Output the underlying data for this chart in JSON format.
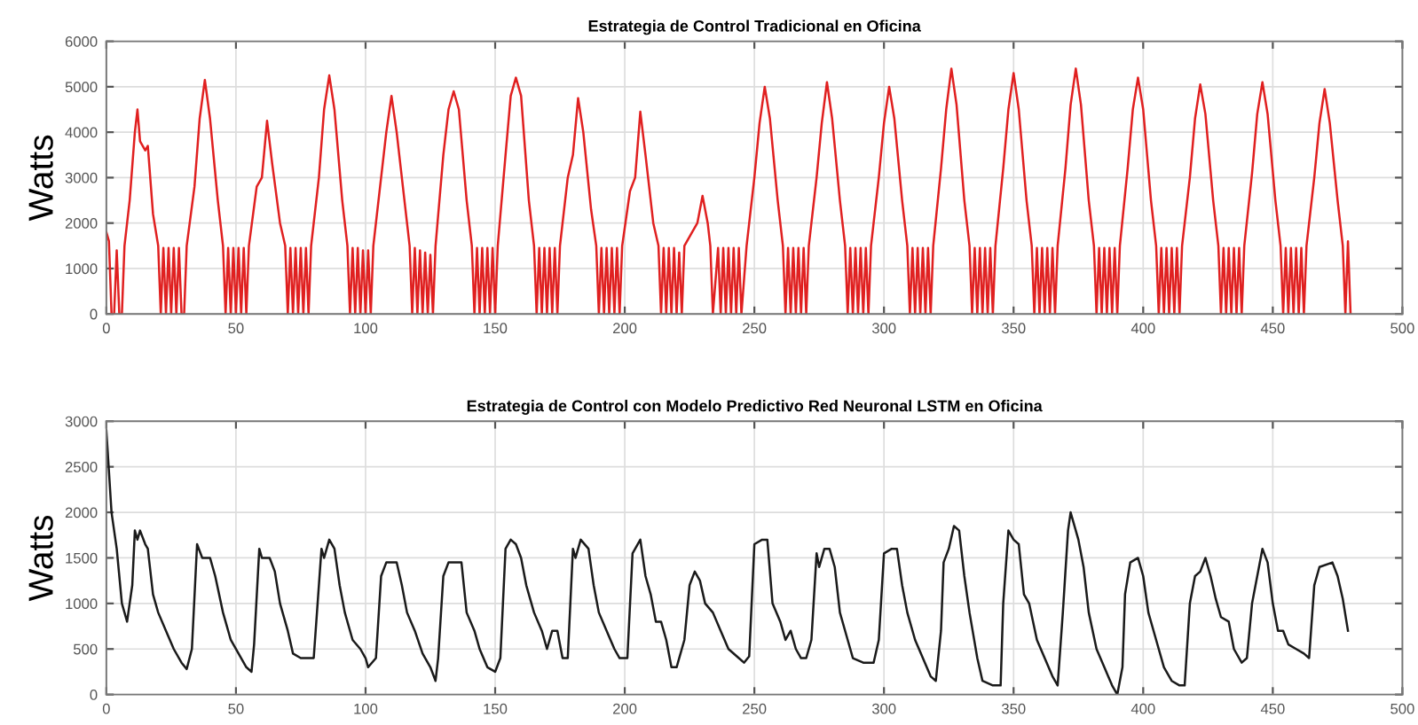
{
  "chart_data": [
    {
      "type": "line",
      "title": "Estrategia de Control Tradicional en Oficina",
      "ylabel": "Watts",
      "grid": true,
      "legend": false,
      "xlim": [
        0,
        500
      ],
      "xticks": [
        0,
        50,
        100,
        150,
        200,
        250,
        300,
        350,
        400,
        450,
        500
      ],
      "ylim": [
        0,
        6000
      ],
      "yticks": [
        0,
        1000,
        2000,
        3000,
        4000,
        5000,
        6000
      ],
      "series": [
        {
          "color": "#e02020",
          "x": [
            0,
            1,
            2,
            3,
            4,
            5,
            6,
            7,
            9,
            11,
            12,
            13,
            15,
            16,
            18,
            20,
            21,
            22,
            23,
            24,
            25,
            26,
            27,
            28,
            29,
            30,
            31,
            34,
            36,
            38,
            40,
            43,
            45,
            46,
            47,
            48,
            49,
            50,
            51,
            52,
            53,
            54,
            55,
            58,
            60,
            62,
            64,
            67,
            69,
            70,
            71,
            72,
            73,
            74,
            75,
            76,
            77,
            78,
            79,
            82,
            84,
            86,
            88,
            91,
            93,
            94,
            95,
            96,
            97,
            98,
            99,
            100,
            101,
            102,
            103,
            106,
            108,
            110,
            112,
            115,
            117,
            118,
            119,
            120,
            121,
            122,
            123,
            124,
            125,
            126,
            127,
            130,
            132,
            134,
            136,
            139,
            141,
            142,
            143,
            144,
            145,
            146,
            147,
            148,
            149,
            150,
            151,
            154,
            156,
            158,
            160,
            163,
            165,
            166,
            167,
            168,
            169,
            170,
            171,
            172,
            173,
            174,
            175,
            178,
            180,
            182,
            184,
            187,
            189,
            190,
            191,
            192,
            193,
            194,
            195,
            196,
            197,
            198,
            199,
            202,
            204,
            206,
            208,
            211,
            213,
            214,
            215,
            216,
            217,
            218,
            219,
            220,
            221,
            222,
            223,
            226,
            228,
            230,
            232,
            233,
            234,
            236,
            237,
            238,
            239,
            240,
            241,
            242,
            243,
            244,
            245,
            247,
            250,
            252,
            254,
            256,
            259,
            261,
            262,
            263,
            264,
            265,
            266,
            267,
            268,
            269,
            270,
            271,
            274,
            276,
            278,
            280,
            283,
            285,
            286,
            287,
            288,
            289,
            290,
            291,
            292,
            293,
            294,
            295,
            298,
            300,
            302,
            304,
            307,
            309,
            310,
            311,
            312,
            313,
            314,
            315,
            316,
            317,
            318,
            319,
            322,
            324,
            326,
            328,
            331,
            333,
            334,
            335,
            336,
            337,
            338,
            339,
            340,
            341,
            342,
            343,
            346,
            348,
            350,
            352,
            355,
            357,
            358,
            359,
            360,
            361,
            362,
            363,
            364,
            365,
            366,
            367,
            370,
            372,
            374,
            376,
            379,
            381,
            382,
            383,
            384,
            385,
            386,
            387,
            388,
            389,
            390,
            391,
            394,
            396,
            398,
            400,
            403,
            405,
            406,
            407,
            408,
            409,
            410,
            411,
            412,
            413,
            414,
            415,
            418,
            420,
            422,
            424,
            427,
            429,
            430,
            431,
            432,
            433,
            434,
            435,
            436,
            437,
            438,
            439,
            442,
            444,
            446,
            448,
            451,
            453,
            454,
            455,
            456,
            457,
            458,
            459,
            460,
            461,
            462,
            463,
            466,
            468,
            470,
            472,
            475,
            477,
            478,
            479,
            480
          ],
          "values": [
            1800,
            1600,
            0,
            0,
            1400,
            0,
            0,
            1500,
            2500,
            4000,
            4500,
            3800,
            3600,
            3700,
            2200,
            1500,
            0,
            1450,
            0,
            1450,
            0,
            1450,
            0,
            1450,
            0,
            0,
            1500,
            2800,
            4300,
            5150,
            4300,
            2500,
            1500,
            0,
            1450,
            0,
            1450,
            0,
            1450,
            0,
            1450,
            0,
            1500,
            2800,
            3000,
            4250,
            3300,
            2000,
            1500,
            0,
            1450,
            0,
            1450,
            0,
            1450,
            0,
            1450,
            0,
            1500,
            3000,
            4500,
            5250,
            4500,
            2500,
            1500,
            0,
            1450,
            0,
            1450,
            0,
            1400,
            0,
            1400,
            0,
            1500,
            3000,
            4000,
            4800,
            4000,
            2500,
            1500,
            0,
            1450,
            0,
            1400,
            0,
            1350,
            0,
            1300,
            0,
            1500,
            3500,
            4500,
            4900,
            4500,
            2500,
            1500,
            0,
            1450,
            0,
            1450,
            0,
            1450,
            0,
            1450,
            0,
            1500,
            3500,
            4800,
            5200,
            4800,
            2500,
            1500,
            0,
            1450,
            0,
            1450,
            0,
            1450,
            0,
            1450,
            0,
            1500,
            3000,
            3500,
            4750,
            4000,
            2300,
            1500,
            0,
            1450,
            0,
            1450,
            0,
            1450,
            0,
            1450,
            0,
            1500,
            2700,
            3000,
            4450,
            3500,
            2000,
            1500,
            0,
            1450,
            0,
            1450,
            0,
            1450,
            0,
            1350,
            0,
            1500,
            1800,
            2000,
            2600,
            2000,
            1500,
            0,
            1450,
            0,
            1450,
            0,
            1450,
            0,
            1450,
            0,
            1450,
            0,
            1500,
            3000,
            4200,
            5000,
            4300,
            2500,
            1500,
            0,
            1450,
            0,
            1450,
            0,
            1450,
            0,
            1450,
            0,
            1500,
            3000,
            4200,
            5100,
            4300,
            2500,
            1500,
            0,
            1450,
            0,
            1450,
            0,
            1450,
            0,
            1450,
            0,
            1500,
            3000,
            4200,
            5000,
            4300,
            2500,
            1500,
            0,
            1450,
            0,
            1450,
            0,
            1450,
            0,
            1450,
            0,
            1500,
            3200,
            4500,
            5400,
            4600,
            2500,
            1500,
            0,
            1450,
            0,
            1450,
            0,
            1450,
            0,
            1450,
            0,
            1500,
            3200,
            4500,
            5300,
            4500,
            2500,
            1500,
            0,
            1450,
            0,
            1450,
            0,
            1450,
            0,
            1450,
            0,
            1500,
            3200,
            4600,
            5400,
            4600,
            2500,
            1500,
            0,
            1450,
            0,
            1450,
            0,
            1450,
            0,
            1450,
            0,
            1500,
            3200,
            4500,
            5200,
            4500,
            2500,
            1500,
            0,
            1450,
            0,
            1450,
            0,
            1450,
            0,
            1450,
            0,
            1500,
            3000,
            4300,
            5050,
            4400,
            2500,
            1500,
            0,
            1450,
            0,
            1450,
            0,
            1450,
            0,
            1450,
            0,
            1500,
            3100,
            4400,
            5100,
            4400,
            2500,
            1500,
            0,
            1450,
            0,
            1450,
            0,
            1450,
            0,
            1450,
            0,
            1500,
            3000,
            4200,
            4950,
            4200,
            2500,
            1500,
            0,
            1600,
            0
          ]
        }
      ]
    },
    {
      "type": "line",
      "title": "Estrategia de Control con Modelo Predictivo Red Neuronal LSTM en Oficina",
      "ylabel": "Watts",
      "grid": true,
      "legend": false,
      "xlim": [
        0,
        500
      ],
      "xticks": [
        0,
        50,
        100,
        150,
        200,
        250,
        300,
        350,
        400,
        450,
        500
      ],
      "ylim": [
        0,
        3000
      ],
      "yticks": [
        0,
        500,
        1000,
        1500,
        2000,
        2500,
        3000
      ],
      "series": [
        {
          "color": "#1a1a1a",
          "x": [
            0,
            2,
            4,
            6,
            8,
            10,
            11,
            12,
            13,
            15,
            16,
            18,
            20,
            23,
            26,
            29,
            31,
            33,
            35,
            37,
            40,
            42,
            45,
            48,
            51,
            54,
            56,
            57,
            59,
            60,
            63,
            65,
            67,
            70,
            72,
            75,
            78,
            80,
            83,
            84,
            86,
            88,
            90,
            92,
            95,
            98,
            100,
            101,
            104,
            106,
            108,
            112,
            114,
            116,
            119,
            122,
            125,
            127,
            128,
            130,
            132,
            137,
            139,
            142,
            144,
            147,
            150,
            152,
            154,
            156,
            158,
            160,
            162,
            165,
            168,
            170,
            172,
            174,
            176,
            178,
            180,
            181,
            183,
            186,
            188,
            190,
            193,
            196,
            198,
            201,
            203,
            206,
            208,
            210,
            212,
            214,
            216,
            218,
            220,
            223,
            225,
            227,
            229,
            231,
            234,
            237,
            240,
            244,
            246,
            248,
            250,
            253,
            255,
            257,
            260,
            262,
            264,
            266,
            268,
            270,
            272,
            274,
            275,
            277,
            279,
            281,
            283,
            286,
            288,
            292,
            296,
            298,
            300,
            303,
            305,
            307,
            309,
            312,
            315,
            318,
            320,
            322,
            323,
            325,
            327,
            329,
            331,
            333,
            336,
            338,
            342,
            345,
            346,
            348,
            350,
            352,
            354,
            356,
            359,
            362,
            365,
            367,
            369,
            371,
            372,
            375,
            377,
            379,
            382,
            385,
            388,
            390,
            392,
            393,
            395,
            398,
            400,
            402,
            405,
            408,
            411,
            414,
            416,
            418,
            420,
            422,
            424,
            426,
            428,
            430,
            433,
            435,
            438,
            440,
            442,
            444,
            446,
            448,
            450,
            452,
            454,
            456,
            459,
            462,
            464,
            466,
            468,
            473,
            475,
            477,
            479
          ],
          "values": [
            2900,
            2000,
            1600,
            1000,
            800,
            1200,
            1800,
            1700,
            1800,
            1650,
            1600,
            1100,
            900,
            700,
            500,
            350,
            280,
            500,
            1650,
            1500,
            1500,
            1300,
            900,
            600,
            450,
            300,
            250,
            550,
            1600,
            1500,
            1500,
            1350,
            1000,
            700,
            450,
            400,
            400,
            400,
            1600,
            1500,
            1700,
            1600,
            1200,
            900,
            600,
            500,
            400,
            300,
            400,
            1300,
            1450,
            1450,
            1200,
            900,
            700,
            450,
            300,
            150,
            400,
            1300,
            1450,
            1450,
            900,
            700,
            500,
            300,
            250,
            400,
            1600,
            1700,
            1650,
            1500,
            1200,
            900,
            700,
            500,
            700,
            700,
            400,
            400,
            1600,
            1500,
            1700,
            1600,
            1200,
            900,
            700,
            500,
            400,
            400,
            1550,
            1700,
            1300,
            1100,
            800,
            800,
            600,
            300,
            300,
            600,
            1200,
            1350,
            1250,
            1000,
            900,
            700,
            500,
            400,
            350,
            420,
            1650,
            1700,
            1700,
            1000,
            800,
            600,
            700,
            500,
            400,
            400,
            600,
            1550,
            1400,
            1600,
            1600,
            1400,
            900,
            600,
            400,
            350,
            350,
            600,
            1550,
            1600,
            1600,
            1200,
            900,
            600,
            400,
            200,
            150,
            700,
            1450,
            1600,
            1850,
            1800,
            1300,
            900,
            400,
            150,
            100,
            100,
            1000,
            1800,
            1700,
            1650,
            1100,
            1000,
            600,
            400,
            200,
            100,
            900,
            1800,
            2000,
            1700,
            1400,
            900,
            500,
            300,
            100,
            0,
            300,
            1100,
            1450,
            1500,
            1300,
            900,
            600,
            300,
            150,
            100,
            100,
            1000,
            1300,
            1350,
            1500,
            1300,
            1050,
            850,
            800,
            500,
            350,
            400,
            1000,
            1300,
            1600,
            1450,
            1000,
            700,
            700,
            550,
            500,
            450,
            400,
            1200,
            1400,
            1450,
            1300,
            1050,
            700
          ]
        }
      ]
    }
  ]
}
